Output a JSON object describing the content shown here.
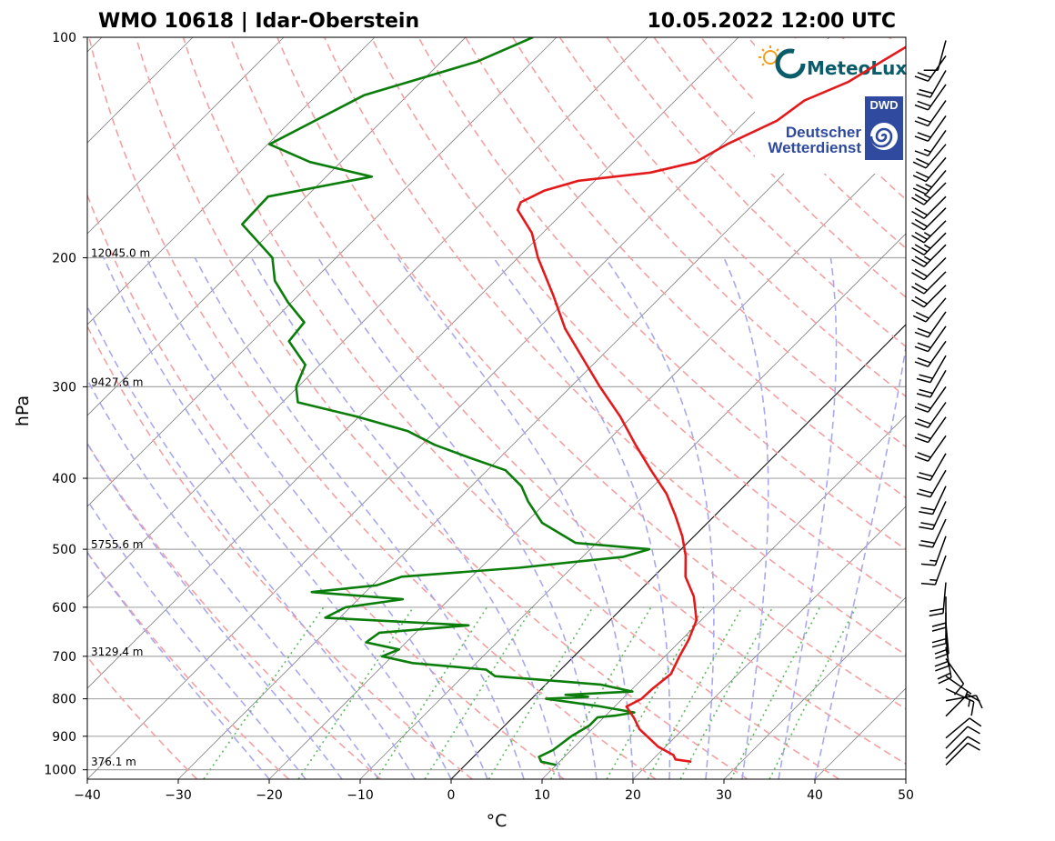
{
  "title_left": "WMO 10618 | Idar-Oberstein",
  "title_right": "10.05.2022 12:00 UTC",
  "logos": {
    "meteolux": "MeteoLux",
    "dwd_badge": "DWD",
    "dwd_line1": "Deutscher",
    "dwd_line2": "Wetterdienst"
  },
  "colors": {
    "temperature": "#e31a1c",
    "dewpoint": "#0a7d0a",
    "dry_adiabat": "#f4a0a0",
    "moist_adiabat": "#a8a8ee",
    "mixing_ratio": "#5cb85c",
    "isotherm": "#808080",
    "isobar": "#a8a8a8"
  },
  "chart_data": {
    "type": "skew-t log-p",
    "xlabel": "°C",
    "ylabel": "hPa",
    "xlim": [
      -40,
      50
    ],
    "ylim": [
      1030,
      100
    ],
    "x_ticks": [
      "−40",
      "−30",
      "−20",
      "−10",
      "0",
      "10",
      "20",
      "30",
      "40",
      "50"
    ],
    "x_tick_values": [
      -40,
      -30,
      -20,
      -10,
      0,
      10,
      20,
      30,
      40,
      50
    ],
    "y_ticks": [
      "100",
      "200",
      "300",
      "400",
      "500",
      "600",
      "700",
      "800",
      "900",
      "1000"
    ],
    "y_tick_values": [
      100,
      200,
      300,
      400,
      500,
      600,
      700,
      800,
      900,
      1000
    ],
    "height_labels": [
      {
        "p": 200,
        "label": "12045.0 m"
      },
      {
        "p": 300,
        "label": "9427.6 m"
      },
      {
        "p": 500,
        "label": "5755.6 m"
      },
      {
        "p": 700,
        "label": "3129.4 m"
      },
      {
        "p": 990,
        "label": "376.1 m"
      }
    ],
    "grid": true,
    "temperature_profile": [
      [
        975,
        24.5
      ],
      [
        968,
        22.5
      ],
      [
        955,
        21.8
      ],
      [
        930,
        19.2
      ],
      [
        880,
        15.2
      ],
      [
        850,
        13.4
      ],
      [
        820,
        11.3
      ],
      [
        800,
        12.1
      ],
      [
        775,
        12.2
      ],
      [
        740,
        12.6
      ],
      [
        700,
        11.6
      ],
      [
        665,
        10.8
      ],
      [
        625,
        9.5
      ],
      [
        580,
        6.6
      ],
      [
        545,
        3.5
      ],
      [
        510,
        1.2
      ],
      [
        480,
        -1.3
      ],
      [
        450,
        -4.3
      ],
      [
        420,
        -7.7
      ],
      [
        390,
        -12.0
      ],
      [
        360,
        -16.5
      ],
      [
        330,
        -21.2
      ],
      [
        300,
        -26.8
      ],
      [
        270,
        -32.7
      ],
      [
        250,
        -37.0
      ],
      [
        225,
        -42.0
      ],
      [
        200,
        -47.8
      ],
      [
        185,
        -51.2
      ],
      [
        172,
        -55.3
      ],
      [
        168,
        -55.8
      ],
      [
        162,
        -54.5
      ],
      [
        157,
        -51.8
      ],
      [
        153,
        -44.8
      ],
      [
        148,
        -41.0
      ],
      [
        140,
        -39.5
      ],
      [
        130,
        -36.6
      ],
      [
        122,
        -35.8
      ],
      [
        115,
        -33.0
      ],
      [
        108,
        -31.6
      ],
      [
        100,
        -29.8
      ]
    ],
    "dewpoint_profile": [
      [
        985,
        10.0
      ],
      [
        975,
        8.0
      ],
      [
        960,
        7.2
      ],
      [
        940,
        8.0
      ],
      [
        900,
        8.5
      ],
      [
        870,
        9.3
      ],
      [
        848,
        9.3
      ],
      [
        843,
        11.2
      ],
      [
        835,
        12.8
      ],
      [
        818,
        8.0
      ],
      [
        800,
        1.6
      ],
      [
        795,
        6.0
      ],
      [
        790,
        3.3
      ],
      [
        782,
        10.3
      ],
      [
        765,
        6.0
      ],
      [
        745,
        -6.5
      ],
      [
        730,
        -8.2
      ],
      [
        715,
        -17.0
      ],
      [
        700,
        -21.1
      ],
      [
        685,
        -20.0
      ],
      [
        670,
        -24.4
      ],
      [
        650,
        -24.0
      ],
      [
        635,
        -15.0
      ],
      [
        620,
        -31.6
      ],
      [
        600,
        -30.5
      ],
      [
        585,
        -25.1
      ],
      [
        572,
        -35.9
      ],
      [
        560,
        -29.5
      ],
      [
        545,
        -27.7
      ],
      [
        530,
        -15.8
      ],
      [
        512,
        -5.5
      ],
      [
        500,
        -3.5
      ],
      [
        490,
        -12.3
      ],
      [
        460,
        -18.2
      ],
      [
        430,
        -22.1
      ],
      [
        410,
        -24.5
      ],
      [
        390,
        -28.0
      ],
      [
        375,
        -33.3
      ],
      [
        360,
        -38.6
      ],
      [
        345,
        -43.0
      ],
      [
        330,
        -50.0
      ],
      [
        315,
        -58.3
      ],
      [
        300,
        -60.2
      ],
      [
        280,
        -61.6
      ],
      [
        260,
        -66.0
      ],
      [
        245,
        -66.4
      ],
      [
        230,
        -70.4
      ],
      [
        215,
        -74.2
      ],
      [
        200,
        -77.0
      ],
      [
        180,
        -84.0
      ],
      [
        165,
        -84.2
      ],
      [
        155,
        -75.0
      ],
      [
        148,
        -83.4
      ],
      [
        140,
        -89.8
      ],
      [
        120,
        -84.8
      ],
      [
        108,
        -76.1
      ],
      [
        100,
        -72.6
      ]
    ],
    "wind_barbs": [
      {
        "p": 985,
        "dir": 45,
        "kt": 10
      },
      {
        "p": 965,
        "dir": 45,
        "kt": 10
      },
      {
        "p": 935,
        "dir": 45,
        "kt": 10
      },
      {
        "p": 905,
        "dir": 50,
        "kt": 10
      },
      {
        "p": 845,
        "dir": 45,
        "kt": 10
      },
      {
        "p": 805,
        "dir": 80,
        "kt": 10
      },
      {
        "p": 775,
        "dir": 115,
        "kt": 15
      },
      {
        "p": 745,
        "dir": 125,
        "kt": 5
      },
      {
        "p": 705,
        "dir": 145,
        "kt": 10
      },
      {
        "p": 680,
        "dir": 170,
        "kt": 20
      },
      {
        "p": 655,
        "dir": 175,
        "kt": 20
      },
      {
        "p": 630,
        "dir": 175,
        "kt": 20
      },
      {
        "p": 610,
        "dir": 180,
        "kt": 20
      },
      {
        "p": 580,
        "dir": 180,
        "kt": 20
      },
      {
        "p": 555,
        "dir": 185,
        "kt": 20
      },
      {
        "p": 510,
        "dir": 200,
        "kt": 15
      },
      {
        "p": 480,
        "dir": 200,
        "kt": 15
      },
      {
        "p": 455,
        "dir": 205,
        "kt": 20
      },
      {
        "p": 430,
        "dir": 205,
        "kt": 20
      },
      {
        "p": 410,
        "dir": 205,
        "kt": 20
      },
      {
        "p": 390,
        "dir": 210,
        "kt": 20
      },
      {
        "p": 370,
        "dir": 210,
        "kt": 20
      },
      {
        "p": 350,
        "dir": 215,
        "kt": 20
      },
      {
        "p": 330,
        "dir": 215,
        "kt": 20
      },
      {
        "p": 315,
        "dir": 215,
        "kt": 20
      },
      {
        "p": 300,
        "dir": 215,
        "kt": 20
      },
      {
        "p": 285,
        "dir": 210,
        "kt": 20
      },
      {
        "p": 272,
        "dir": 210,
        "kt": 20
      },
      {
        "p": 260,
        "dir": 215,
        "kt": 20
      },
      {
        "p": 248,
        "dir": 215,
        "kt": 20
      },
      {
        "p": 237,
        "dir": 215,
        "kt": 20
      },
      {
        "p": 227,
        "dir": 220,
        "kt": 20
      },
      {
        "p": 218,
        "dir": 225,
        "kt": 20
      },
      {
        "p": 209,
        "dir": 225,
        "kt": 20
      },
      {
        "p": 200,
        "dir": 225,
        "kt": 20
      },
      {
        "p": 192,
        "dir": 225,
        "kt": 25
      },
      {
        "p": 185,
        "dir": 225,
        "kt": 25
      },
      {
        "p": 178,
        "dir": 225,
        "kt": 25
      },
      {
        "p": 171,
        "dir": 225,
        "kt": 20
      },
      {
        "p": 165,
        "dir": 225,
        "kt": 20
      },
      {
        "p": 158,
        "dir": 225,
        "kt": 25
      },
      {
        "p": 152,
        "dir": 220,
        "kt": 25
      },
      {
        "p": 146,
        "dir": 220,
        "kt": 20
      },
      {
        "p": 140,
        "dir": 220,
        "kt": 20
      },
      {
        "p": 134,
        "dir": 215,
        "kt": 15
      },
      {
        "p": 128,
        "dir": 215,
        "kt": 20
      },
      {
        "p": 122,
        "dir": 215,
        "kt": 20
      },
      {
        "p": 116,
        "dir": 215,
        "kt": 20
      },
      {
        "p": 111,
        "dir": 210,
        "kt": 20
      },
      {
        "p": 106,
        "dir": 215,
        "kt": 20
      },
      {
        "p": 101,
        "dir": 195,
        "kt": 10
      }
    ]
  }
}
